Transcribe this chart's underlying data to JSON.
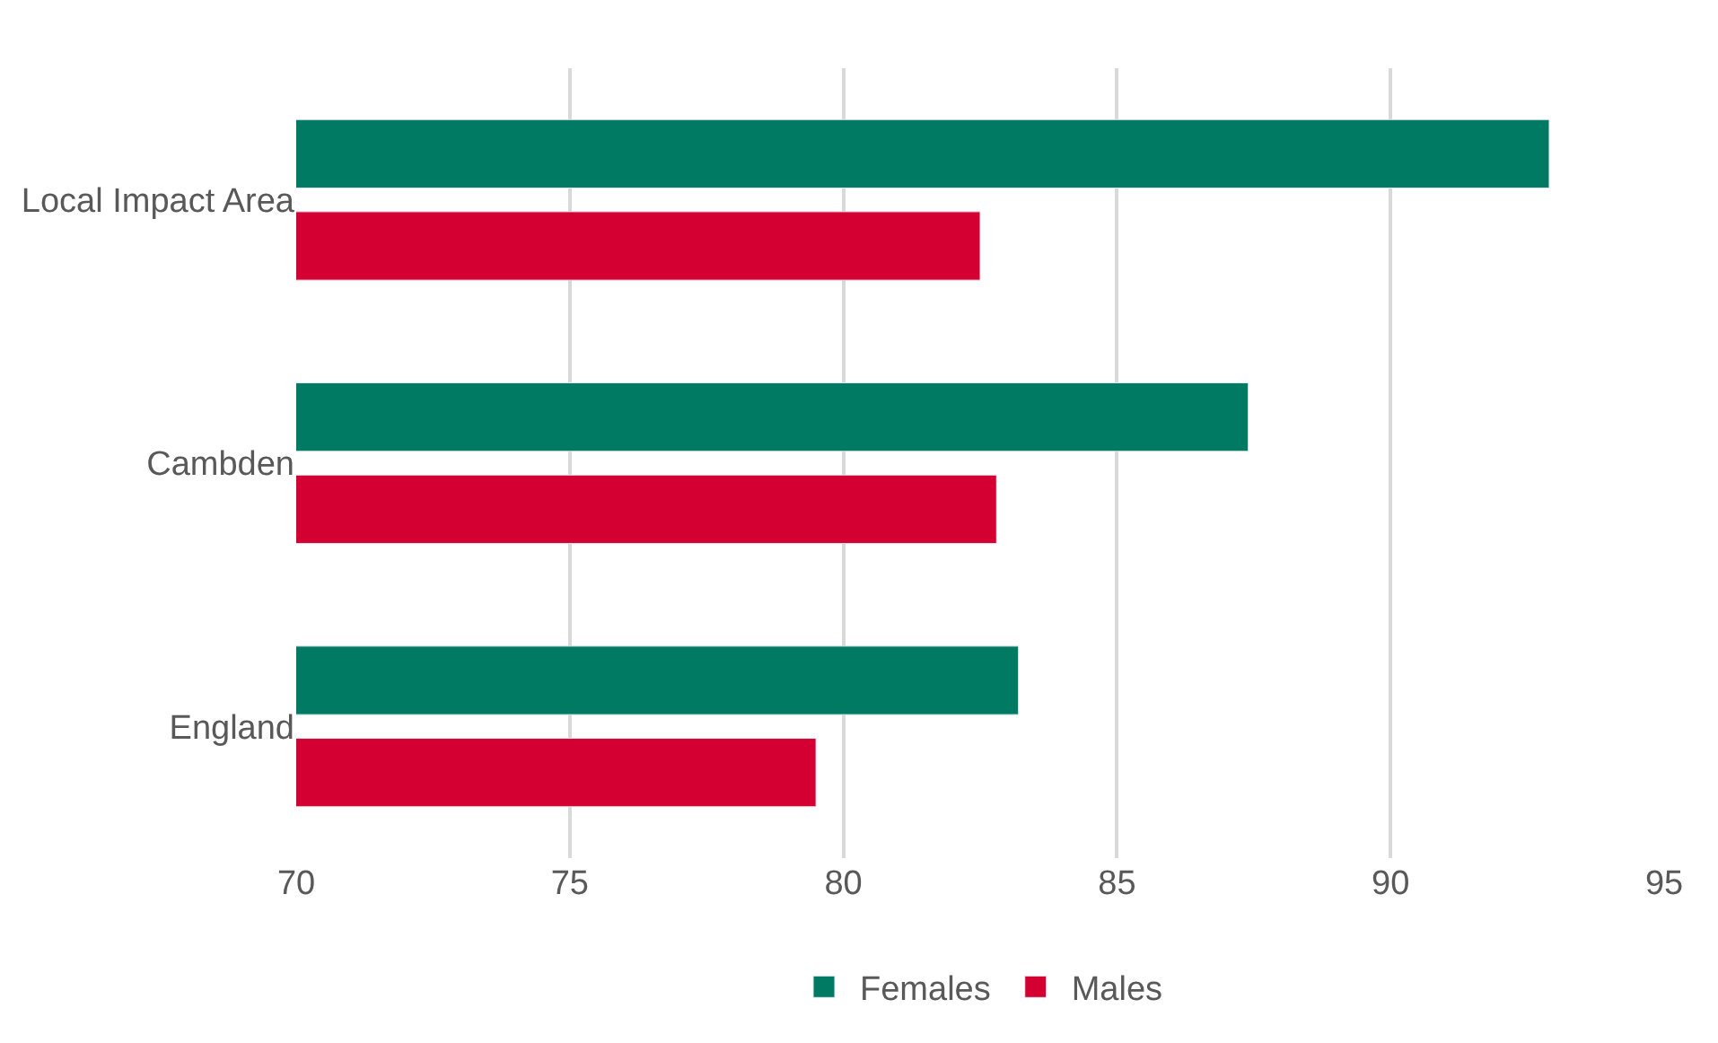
{
  "chart_data": {
    "type": "bar",
    "orientation": "horizontal",
    "categories": [
      "Local Impact Area",
      "Cambden",
      "England"
    ],
    "series": [
      {
        "name": "Females",
        "color": "#007a63",
        "values": [
          92.9,
          87.4,
          83.2
        ]
      },
      {
        "name": "Males",
        "color": "#d50032",
        "values": [
          82.5,
          82.8,
          79.5
        ]
      }
    ],
    "xlim": [
      70,
      95
    ],
    "xticks": [
      70,
      75,
      80,
      85,
      90,
      95
    ],
    "grid": "x",
    "legend": "bottom"
  }
}
